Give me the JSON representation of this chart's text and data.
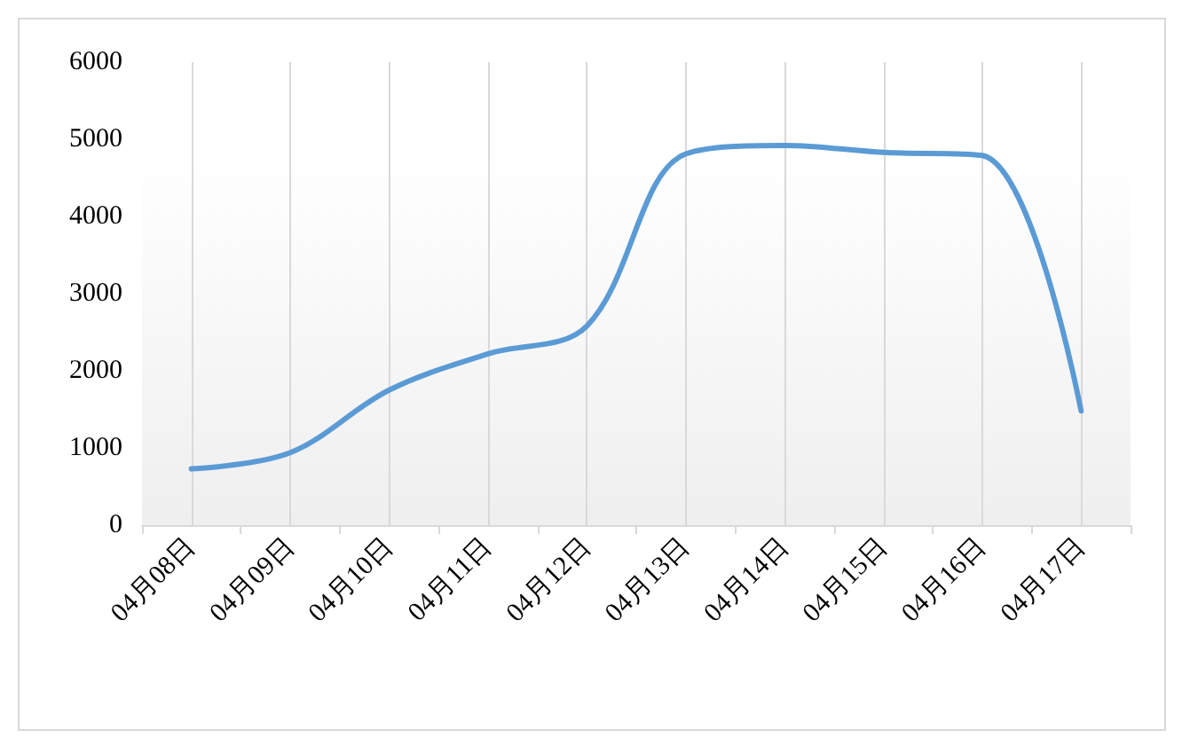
{
  "chart_data": {
    "type": "line",
    "categories": [
      "04月08日",
      "04月09日",
      "04月10日",
      "04月11日",
      "04月12日",
      "04月13日",
      "04月14日",
      "04月15日",
      "04月16日",
      "04月17日"
    ],
    "series": [
      {
        "color": "#5b9bd5",
        "values": [
          730,
          940,
          1750,
          2220,
          2580,
          4810,
          4920,
          4830,
          4790,
          1480
        ]
      }
    ],
    "ylim": [
      0,
      6000
    ],
    "yticks": [
      0,
      1000,
      2000,
      3000,
      4000,
      5000,
      6000
    ],
    "grid": "x",
    "marker": "none",
    "line_style": "solid"
  }
}
